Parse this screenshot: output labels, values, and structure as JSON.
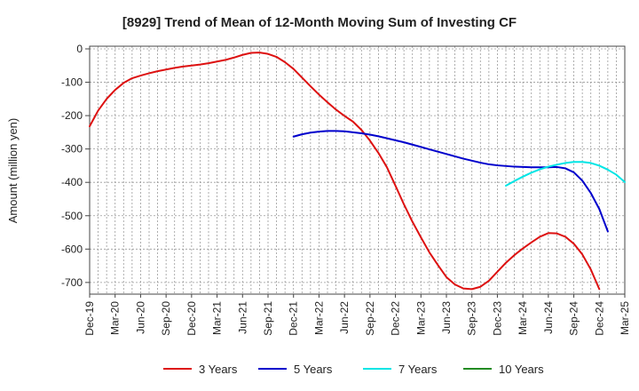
{
  "chart_data": {
    "type": "line",
    "title": "[8929]  Trend of Mean of 12-Month Moving Sum of Investing CF",
    "xlabel": "",
    "ylabel": "Amount (million yen)",
    "ylim": [
      -735,
      8
    ],
    "grid": true,
    "legend_position": "bottom",
    "x_ticks": [
      "Dec-19",
      "Mar-20",
      "Jun-20",
      "Sep-20",
      "Dec-20",
      "Mar-21",
      "Jun-21",
      "Sep-21",
      "Dec-21",
      "Mar-22",
      "Jun-22",
      "Sep-22",
      "Dec-22",
      "Mar-23",
      "Jun-23",
      "Sep-23",
      "Dec-23",
      "Mar-24",
      "Jun-24",
      "Sep-24",
      "Dec-24",
      "Mar-25"
    ],
    "y_ticks": [
      0,
      -100,
      -200,
      -300,
      -400,
      -500,
      -600,
      -700
    ],
    "y_tick_labels": [
      "0",
      "-100",
      "-200",
      "-300",
      "-400",
      "-500",
      "-600",
      "-700"
    ],
    "series": [
      {
        "name": "3 Years",
        "color": "#dd1111",
        "start_index": 0,
        "values": [
          -232,
          -185,
          -150,
          -123,
          -102,
          -88,
          -80,
          -73,
          -67,
          -62,
          -57,
          -53,
          -50,
          -47,
          -43,
          -38,
          -33,
          -26,
          -18,
          -12,
          -11,
          -15,
          -24,
          -40,
          -60,
          -86,
          -112,
          -137,
          -160,
          -182,
          -201,
          -218,
          -243,
          -275,
          -312,
          -355,
          -410,
          -466,
          -518,
          -565,
          -610,
          -648,
          -684,
          -706,
          -718,
          -720,
          -713,
          -695,
          -668,
          -641,
          -618,
          -598,
          -580,
          -563,
          -552,
          -553,
          -563,
          -584,
          -616,
          -661,
          -720
        ]
      },
      {
        "name": "5 Years",
        "color": "#0000cc",
        "start_index": 24,
        "values": [
          -263,
          -256,
          -251,
          -248,
          -246,
          -246,
          -247,
          -250,
          -253,
          -257,
          -262,
          -268,
          -274,
          -280,
          -287,
          -294,
          -301,
          -308,
          -315,
          -322,
          -329,
          -335,
          -341,
          -346,
          -349,
          -351,
          -353,
          -354,
          -355,
          -355,
          -355,
          -354,
          -358,
          -370,
          -395,
          -432,
          -480,
          -547
        ]
      },
      {
        "name": "7 Years",
        "color": "#00e5e5",
        "start_index": 49,
        "values": [
          -410,
          -396,
          -383,
          -371,
          -361,
          -353,
          -347,
          -342,
          -339,
          -339,
          -342,
          -350,
          -362,
          -377,
          -399
        ]
      },
      {
        "name": "10 Years",
        "color": "#228b22",
        "start_index": 0,
        "values": []
      }
    ]
  }
}
